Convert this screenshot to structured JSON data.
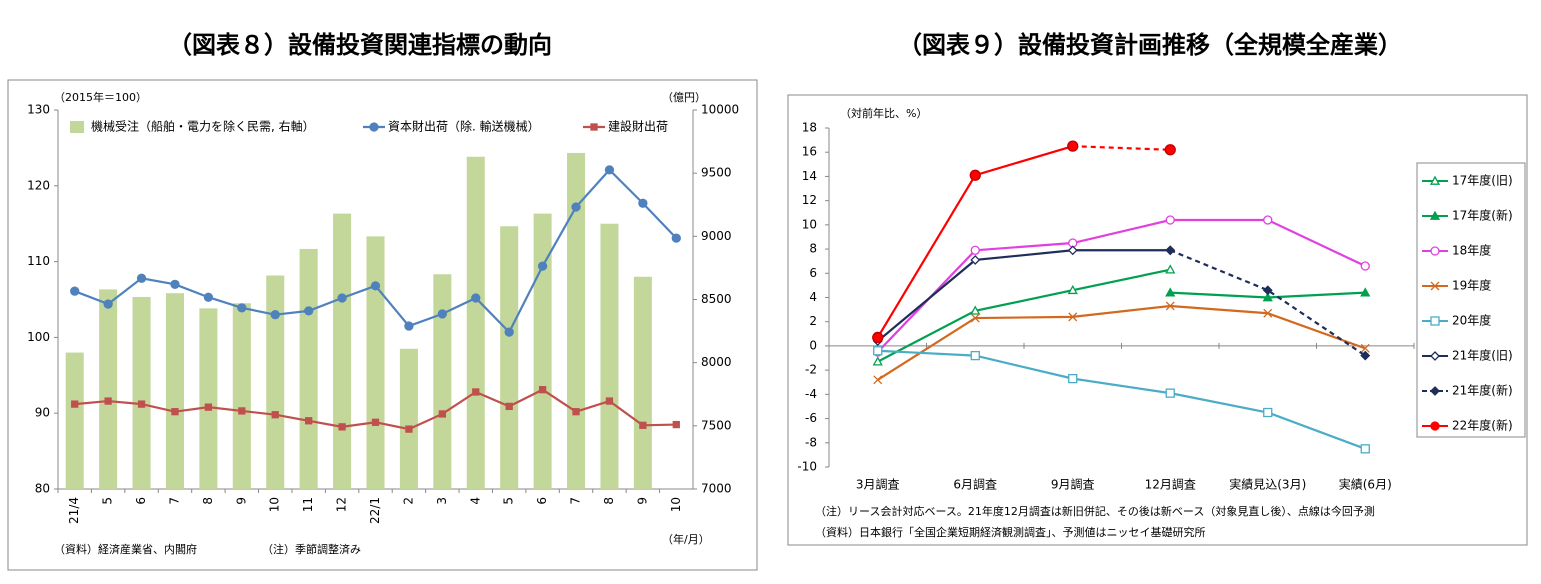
{
  "chart_data": [
    {
      "type": "combo",
      "title": "（図表８）設備投資関連指標の動向",
      "ylabel": "（2015年＝100）",
      "y2label": "（億円）",
      "xlabel": "（年/月）",
      "notes": [
        "（資料）経済産業省、内閣府",
        "（注）季節調整済み"
      ],
      "categories": [
        "21/4",
        "5",
        "6",
        "7",
        "8",
        "9",
        "10",
        "11",
        "12",
        "22/1",
        "2",
        "3",
        "4",
        "5",
        "6",
        "7",
        "8",
        "9",
        "10"
      ],
      "ylim": [
        80,
        130
      ],
      "yticks": [
        80,
        90,
        100,
        110,
        120,
        130
      ],
      "y2lim": [
        7000,
        10000
      ],
      "y2ticks": [
        7000,
        7500,
        8000,
        8500,
        9000,
        9500,
        10000
      ],
      "grid": false,
      "series": [
        {
          "name": "機械受注（船舶・電力を除く民需, 右軸）",
          "kind": "bar",
          "axis": "y2",
          "color": "#c4d79b",
          "values": [
            8080,
            8580,
            8520,
            8550,
            8430,
            8470,
            8690,
            8900,
            9180,
            9000,
            8110,
            8700,
            9630,
            9080,
            9180,
            9660,
            9100,
            8680,
            null
          ]
        },
        {
          "name": "資本財出荷（除. 輸送機械）",
          "kind": "line",
          "marker": "circle",
          "color": "#4f81bd",
          "values": [
            106.1,
            104.4,
            107.8,
            107.0,
            105.3,
            103.9,
            103.0,
            103.5,
            105.2,
            106.8,
            101.5,
            103.1,
            105.2,
            100.7,
            109.4,
            117.2,
            122.1,
            117.7,
            113.1
          ]
        },
        {
          "name": "建設財出荷",
          "kind": "line",
          "marker": "square",
          "color": "#c0504d",
          "values": [
            91.2,
            91.6,
            91.2,
            90.2,
            90.8,
            90.3,
            89.8,
            89.0,
            88.2,
            88.8,
            87.9,
            89.9,
            92.8,
            90.9,
            93.1,
            90.2,
            91.6,
            88.4,
            88.5
          ]
        }
      ]
    },
    {
      "type": "line",
      "title": "（図表９）設備投資計画推移（全規模全産業）",
      "ylabel": "（対前年比、%）",
      "notes": [
        "（注）リース会計対応ベース。21年度12月調査は新旧併記、その後は新ベース（対象見直し後）、点線は今回予測",
        "（資料）日本銀行「全国企業短期経済観測調査」、予測値はニッセイ基礎研究所"
      ],
      "categories": [
        "3月調査",
        "6月調査",
        "9月調査",
        "12月調査",
        "実績見込(3月)",
        "実績(6月)"
      ],
      "ylim": [
        -10,
        18
      ],
      "yticks": [
        -10,
        -8,
        -6,
        -4,
        -2,
        0,
        2,
        4,
        6,
        8,
        10,
        12,
        14,
        16,
        18
      ],
      "grid": false,
      "legend": "right",
      "series": [
        {
          "name": "17年度(旧)",
          "color": "#00a050",
          "marker": "triangle-open",
          "values": [
            -1.3,
            2.9,
            4.6,
            6.3,
            null,
            null
          ]
        },
        {
          "name": "17年度(新)",
          "color": "#00a050",
          "marker": "triangle",
          "values": [
            null,
            null,
            null,
            4.4,
            4.0,
            4.4
          ]
        },
        {
          "name": "18年度",
          "color": "#e040e0",
          "marker": "circle-open",
          "values": [
            -0.5,
            7.9,
            8.5,
            10.4,
            10.4,
            6.6
          ]
        },
        {
          "name": "19年度",
          "color": "#d2691e",
          "marker": "x",
          "values": [
            -2.8,
            2.3,
            2.4,
            3.3,
            2.7,
            -0.2
          ]
        },
        {
          "name": "20年度",
          "color": "#4bacc6",
          "marker": "square-open",
          "values": [
            -0.4,
            -0.8,
            -2.7,
            -3.9,
            -5.5,
            -8.5
          ]
        },
        {
          "name": "21年度(旧)",
          "color": "#1f2d5a",
          "marker": "diamond-open",
          "values": [
            0.4,
            7.1,
            7.9,
            7.9,
            null,
            null
          ]
        },
        {
          "name": "21年度(新)",
          "color": "#1f2d5a",
          "marker": "diamond",
          "dashed_from": 3,
          "values": [
            null,
            null,
            null,
            7.9,
            4.6,
            -0.8
          ]
        },
        {
          "name": "22年度(新)",
          "color": "#ff0000",
          "marker": "circle",
          "dashed_from": 2,
          "values": [
            0.7,
            14.1,
            16.5,
            16.2,
            null,
            null
          ]
        }
      ]
    }
  ]
}
